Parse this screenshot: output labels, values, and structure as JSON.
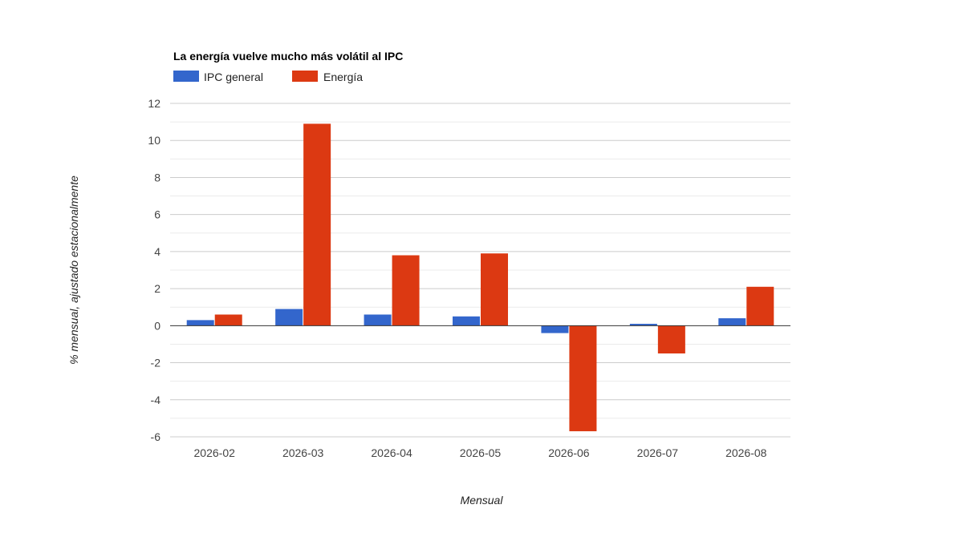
{
  "chart_data": {
    "type": "bar",
    "title": "La energía vuelve mucho más volátil al IPC",
    "xlabel": "Mensual",
    "ylabel": "% mensual, ajustado estacionalmente",
    "categories": [
      "2026-02",
      "2026-03",
      "2026-04",
      "2026-05",
      "2026-06",
      "2026-07",
      "2026-08"
    ],
    "series": [
      {
        "name": "IPC general",
        "color": "#3366cc",
        "values": [
          0.3,
          0.9,
          0.6,
          0.5,
          -0.4,
          0.1,
          0.4
        ]
      },
      {
        "name": "Energía",
        "color": "#dc3912",
        "values": [
          0.6,
          10.9,
          3.8,
          3.9,
          -5.7,
          -1.5,
          2.1
        ]
      }
    ],
    "ylim": [
      -6,
      12
    ],
    "yticks": [
      12,
      10,
      8,
      6,
      4,
      2,
      0,
      -2,
      -4,
      -6
    ],
    "grid": true,
    "legend": "top-left"
  }
}
